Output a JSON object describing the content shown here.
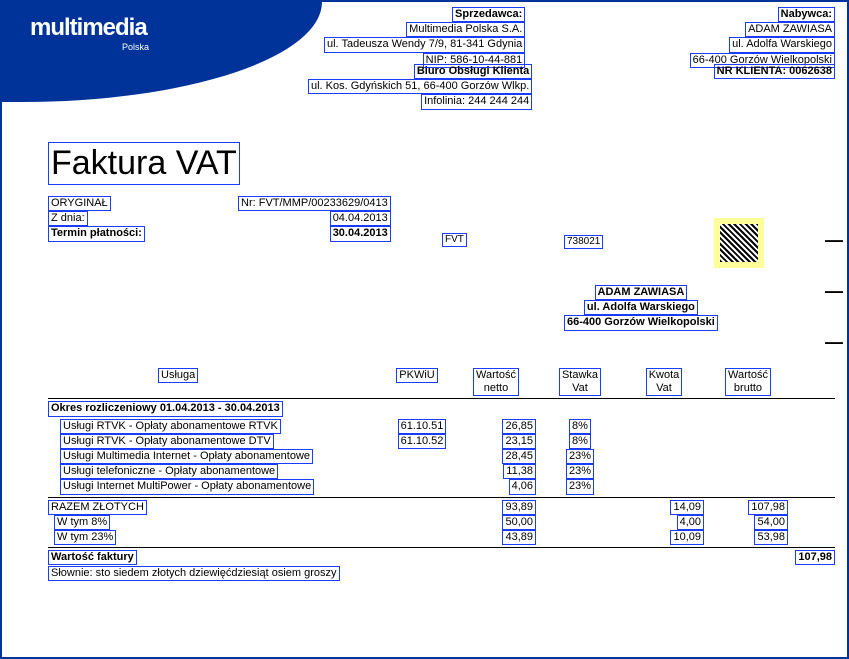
{
  "logo": {
    "text": "multimedia",
    "sub": "Polska"
  },
  "seller": {
    "title": "Sprzedawca:",
    "name": "Multimedia Polska S.A.",
    "addr": "ul. Tadeusza Wendy 7/9, 81-341 Gdynia",
    "nip": "NIP: 586-10-44-881"
  },
  "office": {
    "title": "Biuro Obsługi Klienta",
    "addr": "ul. Kos. Gdyńskich 51, 66-400 Gorzów Wlkp.",
    "phone": "Infolinia: 244 244 244"
  },
  "buyer": {
    "title": "Nabywca:",
    "name": "ADAM ZAWIASA",
    "addr1": "ul. Adolfa Warskiego",
    "addr2": "66-400 Gorzów Wielkopolski"
  },
  "customer_no": "NR KLIENTA: 0062638",
  "title": "Faktura VAT",
  "meta": {
    "original": "ORYGINAŁ",
    "date_label": "Z dnia:",
    "due_label": "Termin płatności:",
    "nr": "Nr: FVT/MMP/00233629/0413",
    "date": "04.04.2013",
    "due": "30.04.2013"
  },
  "code1": "FVT",
  "code2": "738021",
  "addr_block": {
    "name": "ADAM ZAWIASA",
    "line1": "ul. Adolfa Warskiego",
    "line2": "66-400 Gorzów Wielkopolski"
  },
  "headers": {
    "usluga": "Usługa",
    "pkwiu": "PKWiU",
    "netto": "Wartość\nnetto",
    "stawka": "Stawka\nVat",
    "kwota": "Kwota\nVat",
    "brutto": "Wartość\nbrutto"
  },
  "period": "Okres rozliczeniowy 01.04.2013 - 30.04.2013",
  "rows": [
    {
      "svc": "Usługi RTVK - Opłaty abonamentowe RTVK",
      "pkwiu": "61.10.51",
      "netto": "26,85",
      "stawka": "8%"
    },
    {
      "svc": "Usługi RTVK - Opłaty abonamentowe DTV",
      "pkwiu": "61.10.52",
      "netto": "23,15",
      "stawka": "8%"
    },
    {
      "svc": "Usługi Multimedia Internet - Opłaty abonamentowe",
      "pkwiu": "",
      "netto": "28,45",
      "stawka": "23%"
    },
    {
      "svc": "Usługi telefoniczne - Opłaty abonamentowe",
      "pkwiu": "",
      "netto": "11,38",
      "stawka": "23%"
    },
    {
      "svc": "Usługi Internet MultiPower - Opłaty abonamentowe",
      "pkwiu": "",
      "netto": "4,06",
      "stawka": "23%"
    }
  ],
  "totals": {
    "razem_label": "RAZEM ZŁOTYCH",
    "razem": {
      "netto": "93,89",
      "kwota": "14,09",
      "brutto": "107,98"
    },
    "w8_label": "W tym 8%",
    "w8": {
      "netto": "50,00",
      "kwota": "4,00",
      "brutto": "54,00"
    },
    "w23_label": "W tym 23%",
    "w23": {
      "netto": "43,89",
      "kwota": "10,09",
      "brutto": "53,98"
    }
  },
  "wartosc_label": "Wartość faktury",
  "wartosc": "107,98",
  "slownie": "Słownie: sto siedem złotych dziewięćdziesiąt osiem groszy"
}
